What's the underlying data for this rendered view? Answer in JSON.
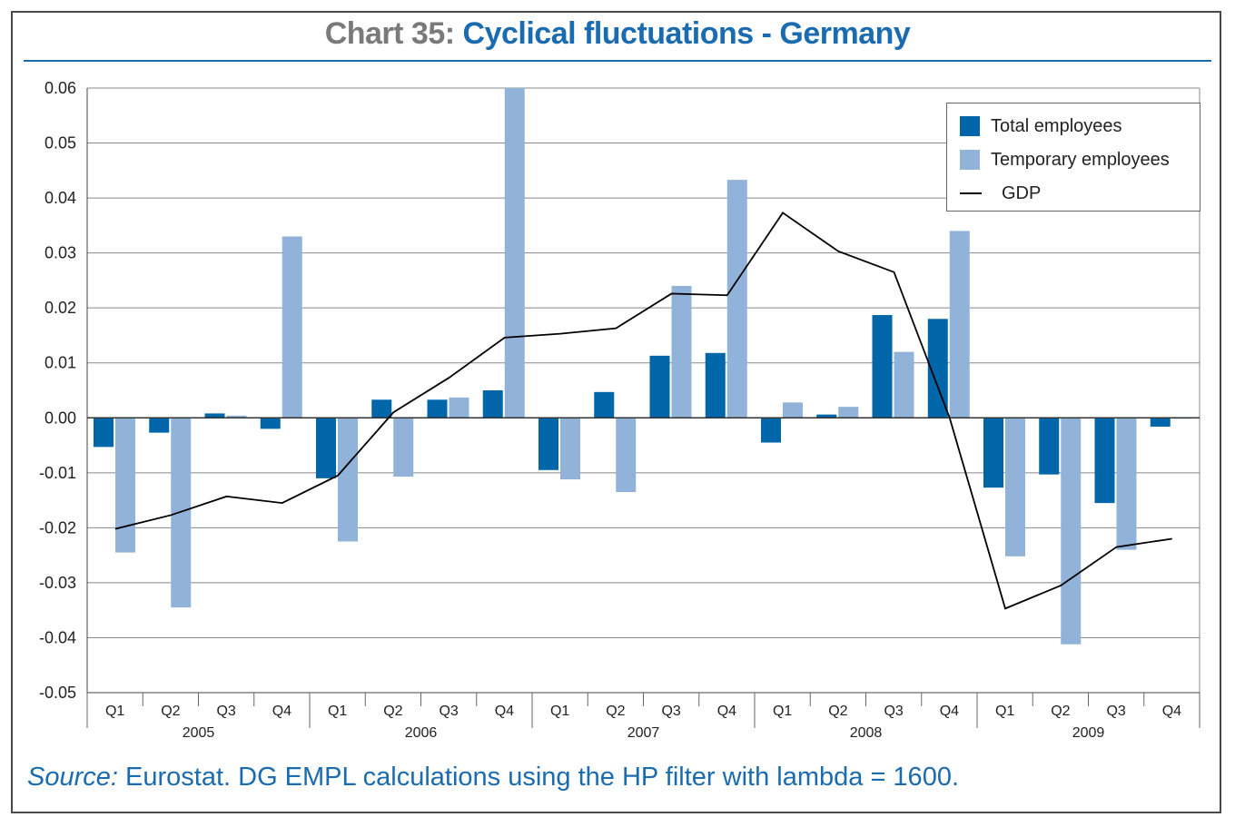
{
  "header": {
    "title_prefix": "Chart 35:",
    "title_main": "Cyclical fluctuations - Germany"
  },
  "footer": {
    "source_lead": "Source:",
    "source_text": "Eurostat. DG EMPL calculations using the HP filter with lambda = 1600."
  },
  "colors": {
    "total": "#0066aa",
    "temporary": "#91b3d9",
    "gdp": "#000000",
    "accent": "#1a6bb0"
  },
  "chart_data": {
    "type": "bar",
    "title": "Chart 35: Cyclical fluctuations - Germany",
    "ylim": [
      -0.05,
      0.06
    ],
    "yticks": [
      "0.06",
      "0.05",
      "0.04",
      "0.03",
      "0.02",
      "0.01",
      "0.00",
      "-0.01",
      "-0.02",
      "-0.03",
      "-0.04",
      "-0.05"
    ],
    "grid": true,
    "legend_position": "top-right",
    "years": [
      "2005",
      "2006",
      "2007",
      "2008",
      "2009"
    ],
    "categories": [
      "Q1",
      "Q2",
      "Q3",
      "Q4",
      "Q1",
      "Q2",
      "Q3",
      "Q4",
      "Q1",
      "Q2",
      "Q3",
      "Q4",
      "Q1",
      "Q2",
      "Q3",
      "Q4",
      "Q1",
      "Q2",
      "Q3",
      "Q4"
    ],
    "series": [
      {
        "name": "Total employees",
        "kind": "bar",
        "values": [
          -0.0053,
          -0.0027,
          0.0008,
          -0.002,
          -0.011,
          0.0033,
          0.0033,
          0.005,
          -0.0095,
          0.0047,
          0.0113,
          0.0118,
          -0.0045,
          0.0006,
          0.0187,
          0.018,
          -0.0127,
          -0.0103,
          -0.0155,
          -0.0016
        ]
      },
      {
        "name": "Temporary employees",
        "kind": "bar",
        "values": [
          -0.0245,
          -0.0345,
          0.0004,
          0.033,
          -0.0225,
          -0.0107,
          0.0037,
          0.06,
          -0.0112,
          -0.0135,
          0.024,
          0.0433,
          0.0028,
          0.002,
          0.012,
          0.034,
          -0.0252,
          -0.0412,
          -0.024,
          0.0
        ]
      },
      {
        "name": "GDP",
        "kind": "line",
        "values": [
          -0.0202,
          -0.0177,
          -0.0143,
          -0.0155,
          -0.0105,
          0.001,
          0.0073,
          0.0146,
          0.0153,
          0.0163,
          0.0226,
          0.0223,
          0.0373,
          0.0303,
          0.0265,
          0.0,
          -0.0347,
          -0.0305,
          -0.0235,
          -0.022
        ]
      }
    ]
  }
}
